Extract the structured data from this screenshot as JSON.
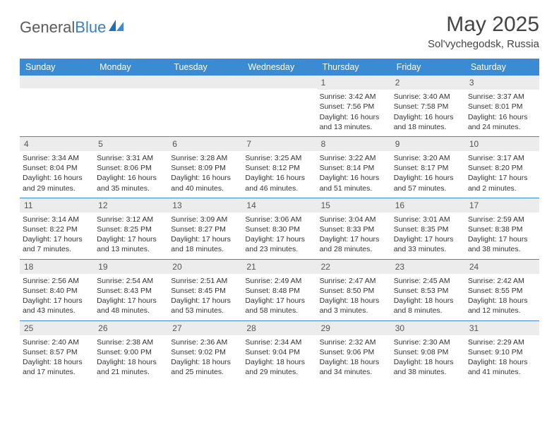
{
  "logo": {
    "word1": "General",
    "word2": "Blue"
  },
  "title": "May 2025",
  "subtitle": "Sol'vychegodsk, Russia",
  "colors": {
    "header_bg": "#3b8bd4",
    "daynum_bg": "#ececec",
    "week_border": "#3b8bd4",
    "logo_gray": "#5a5a5a",
    "logo_blue": "#3b7fc4"
  },
  "day_headers": [
    "Sunday",
    "Monday",
    "Tuesday",
    "Wednesday",
    "Thursday",
    "Friday",
    "Saturday"
  ],
  "weeks": [
    [
      {
        "n": "",
        "sunrise": "",
        "sunset": "",
        "daylight": ""
      },
      {
        "n": "",
        "sunrise": "",
        "sunset": "",
        "daylight": ""
      },
      {
        "n": "",
        "sunrise": "",
        "sunset": "",
        "daylight": ""
      },
      {
        "n": "",
        "sunrise": "",
        "sunset": "",
        "daylight": ""
      },
      {
        "n": "1",
        "sunrise": "Sunrise: 3:42 AM",
        "sunset": "Sunset: 7:56 PM",
        "daylight": "Daylight: 16 hours and 13 minutes."
      },
      {
        "n": "2",
        "sunrise": "Sunrise: 3:40 AM",
        "sunset": "Sunset: 7:58 PM",
        "daylight": "Daylight: 16 hours and 18 minutes."
      },
      {
        "n": "3",
        "sunrise": "Sunrise: 3:37 AM",
        "sunset": "Sunset: 8:01 PM",
        "daylight": "Daylight: 16 hours and 24 minutes."
      }
    ],
    [
      {
        "n": "4",
        "sunrise": "Sunrise: 3:34 AM",
        "sunset": "Sunset: 8:04 PM",
        "daylight": "Daylight: 16 hours and 29 minutes."
      },
      {
        "n": "5",
        "sunrise": "Sunrise: 3:31 AM",
        "sunset": "Sunset: 8:06 PM",
        "daylight": "Daylight: 16 hours and 35 minutes."
      },
      {
        "n": "6",
        "sunrise": "Sunrise: 3:28 AM",
        "sunset": "Sunset: 8:09 PM",
        "daylight": "Daylight: 16 hours and 40 minutes."
      },
      {
        "n": "7",
        "sunrise": "Sunrise: 3:25 AM",
        "sunset": "Sunset: 8:12 PM",
        "daylight": "Daylight: 16 hours and 46 minutes."
      },
      {
        "n": "8",
        "sunrise": "Sunrise: 3:22 AM",
        "sunset": "Sunset: 8:14 PM",
        "daylight": "Daylight: 16 hours and 51 minutes."
      },
      {
        "n": "9",
        "sunrise": "Sunrise: 3:20 AM",
        "sunset": "Sunset: 8:17 PM",
        "daylight": "Daylight: 16 hours and 57 minutes."
      },
      {
        "n": "10",
        "sunrise": "Sunrise: 3:17 AM",
        "sunset": "Sunset: 8:20 PM",
        "daylight": "Daylight: 17 hours and 2 minutes."
      }
    ],
    [
      {
        "n": "11",
        "sunrise": "Sunrise: 3:14 AM",
        "sunset": "Sunset: 8:22 PM",
        "daylight": "Daylight: 17 hours and 7 minutes."
      },
      {
        "n": "12",
        "sunrise": "Sunrise: 3:12 AM",
        "sunset": "Sunset: 8:25 PM",
        "daylight": "Daylight: 17 hours and 13 minutes."
      },
      {
        "n": "13",
        "sunrise": "Sunrise: 3:09 AM",
        "sunset": "Sunset: 8:27 PM",
        "daylight": "Daylight: 17 hours and 18 minutes."
      },
      {
        "n": "14",
        "sunrise": "Sunrise: 3:06 AM",
        "sunset": "Sunset: 8:30 PM",
        "daylight": "Daylight: 17 hours and 23 minutes."
      },
      {
        "n": "15",
        "sunrise": "Sunrise: 3:04 AM",
        "sunset": "Sunset: 8:33 PM",
        "daylight": "Daylight: 17 hours and 28 minutes."
      },
      {
        "n": "16",
        "sunrise": "Sunrise: 3:01 AM",
        "sunset": "Sunset: 8:35 PM",
        "daylight": "Daylight: 17 hours and 33 minutes."
      },
      {
        "n": "17",
        "sunrise": "Sunrise: 2:59 AM",
        "sunset": "Sunset: 8:38 PM",
        "daylight": "Daylight: 17 hours and 38 minutes."
      }
    ],
    [
      {
        "n": "18",
        "sunrise": "Sunrise: 2:56 AM",
        "sunset": "Sunset: 8:40 PM",
        "daylight": "Daylight: 17 hours and 43 minutes."
      },
      {
        "n": "19",
        "sunrise": "Sunrise: 2:54 AM",
        "sunset": "Sunset: 8:43 PM",
        "daylight": "Daylight: 17 hours and 48 minutes."
      },
      {
        "n": "20",
        "sunrise": "Sunrise: 2:51 AM",
        "sunset": "Sunset: 8:45 PM",
        "daylight": "Daylight: 17 hours and 53 minutes."
      },
      {
        "n": "21",
        "sunrise": "Sunrise: 2:49 AM",
        "sunset": "Sunset: 8:48 PM",
        "daylight": "Daylight: 17 hours and 58 minutes."
      },
      {
        "n": "22",
        "sunrise": "Sunrise: 2:47 AM",
        "sunset": "Sunset: 8:50 PM",
        "daylight": "Daylight: 18 hours and 3 minutes."
      },
      {
        "n": "23",
        "sunrise": "Sunrise: 2:45 AM",
        "sunset": "Sunset: 8:53 PM",
        "daylight": "Daylight: 18 hours and 8 minutes."
      },
      {
        "n": "24",
        "sunrise": "Sunrise: 2:42 AM",
        "sunset": "Sunset: 8:55 PM",
        "daylight": "Daylight: 18 hours and 12 minutes."
      }
    ],
    [
      {
        "n": "25",
        "sunrise": "Sunrise: 2:40 AM",
        "sunset": "Sunset: 8:57 PM",
        "daylight": "Daylight: 18 hours and 17 minutes."
      },
      {
        "n": "26",
        "sunrise": "Sunrise: 2:38 AM",
        "sunset": "Sunset: 9:00 PM",
        "daylight": "Daylight: 18 hours and 21 minutes."
      },
      {
        "n": "27",
        "sunrise": "Sunrise: 2:36 AM",
        "sunset": "Sunset: 9:02 PM",
        "daylight": "Daylight: 18 hours and 25 minutes."
      },
      {
        "n": "28",
        "sunrise": "Sunrise: 2:34 AM",
        "sunset": "Sunset: 9:04 PM",
        "daylight": "Daylight: 18 hours and 29 minutes."
      },
      {
        "n": "29",
        "sunrise": "Sunrise: 2:32 AM",
        "sunset": "Sunset: 9:06 PM",
        "daylight": "Daylight: 18 hours and 34 minutes."
      },
      {
        "n": "30",
        "sunrise": "Sunrise: 2:30 AM",
        "sunset": "Sunset: 9:08 PM",
        "daylight": "Daylight: 18 hours and 38 minutes."
      },
      {
        "n": "31",
        "sunrise": "Sunrise: 2:29 AM",
        "sunset": "Sunset: 9:10 PM",
        "daylight": "Daylight: 18 hours and 41 minutes."
      }
    ]
  ]
}
